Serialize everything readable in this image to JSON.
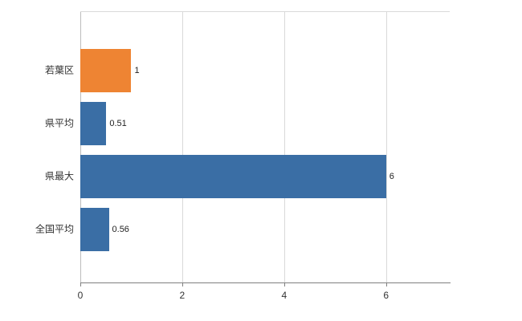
{
  "chart_data": {
    "type": "bar",
    "orientation": "horizontal",
    "title": "",
    "xlabel": "",
    "ylabel": "",
    "categories": [
      "若葉区",
      "県平均",
      "県最大",
      "全国平均"
    ],
    "values": [
      1,
      0.51,
      6,
      0.56
    ],
    "value_labels": [
      "1",
      "0.51",
      "6",
      "0.56"
    ],
    "bar_colors": [
      "#ee8433",
      "#3a6ea5",
      "#3a6ea5",
      "#3a6ea5"
    ],
    "xlim": [
      0,
      7.25
    ],
    "xticks": [
      0,
      2,
      4,
      6
    ],
    "grid": "vertical-gridlines",
    "legend": "none",
    "gridline_color": "#d9d9d9",
    "axis_color": "#808080"
  }
}
